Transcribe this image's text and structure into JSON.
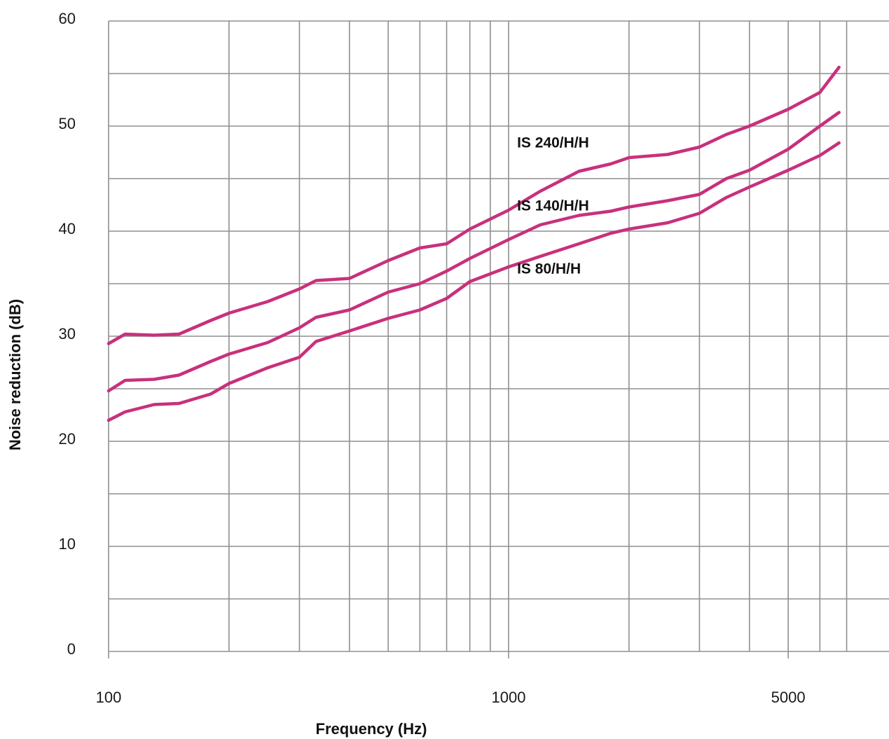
{
  "chart_data": {
    "type": "line",
    "xlabel": "Frequency (Hz)",
    "ylabel": "Noise reduction (dB)",
    "xscale": "log",
    "xlim": [
      100,
      7000
    ],
    "ylim": [
      0,
      60
    ],
    "xticks": [
      100,
      1000,
      5000
    ],
    "xtick_labels": [
      "100",
      "1000",
      "5000"
    ],
    "yticks": [
      0,
      10,
      20,
      30,
      40,
      50,
      60
    ],
    "ytick_labels": [
      "0",
      "10",
      "20",
      "30",
      "40",
      "50",
      "60"
    ],
    "grid": true,
    "line_color": "#c8307c",
    "series": [
      {
        "name": "IS 240/H/H",
        "label_at": [
          1050,
          48.5
        ],
        "x": [
          100,
          110,
          130,
          150,
          180,
          200,
          250,
          300,
          330,
          400,
          500,
          600,
          700,
          800,
          1000,
          1200,
          1500,
          1800,
          2000,
          2500,
          3000,
          3500,
          4000,
          5000,
          6000,
          6700
        ],
        "y": [
          29.3,
          30.2,
          30.1,
          30.2,
          31.5,
          32.2,
          33.3,
          34.5,
          35.3,
          35.5,
          37.2,
          38.4,
          38.8,
          40.2,
          42.0,
          43.8,
          45.7,
          46.4,
          47.0,
          47.3,
          48.0,
          49.2,
          50.0,
          51.6,
          53.2,
          55.6
        ]
      },
      {
        "name": "IS 140/H/H",
        "label_at": [
          1050,
          42.5
        ],
        "x": [
          100,
          110,
          130,
          150,
          180,
          200,
          250,
          300,
          330,
          400,
          500,
          600,
          700,
          800,
          1000,
          1200,
          1500,
          1800,
          2000,
          2500,
          3000,
          3500,
          4000,
          5000,
          6000,
          6700
        ],
        "y": [
          24.8,
          25.8,
          25.9,
          26.3,
          27.6,
          28.3,
          29.4,
          30.8,
          31.8,
          32.5,
          34.2,
          35.0,
          36.2,
          37.4,
          39.2,
          40.6,
          41.5,
          41.9,
          42.3,
          42.9,
          43.5,
          45.0,
          45.8,
          47.8,
          50.0,
          51.3
        ]
      },
      {
        "name": "IS 80/H/H",
        "label_at": [
          1050,
          36.5
        ],
        "x": [
          100,
          110,
          130,
          150,
          180,
          200,
          250,
          300,
          330,
          400,
          500,
          600,
          700,
          800,
          1000,
          1200,
          1500,
          1800,
          2000,
          2500,
          3000,
          3500,
          4000,
          5000,
          6000,
          6700
        ],
        "y": [
          22.0,
          22.8,
          23.5,
          23.6,
          24.5,
          25.5,
          27.0,
          28.0,
          29.5,
          30.5,
          31.7,
          32.5,
          33.6,
          35.2,
          36.6,
          37.6,
          38.8,
          39.8,
          40.2,
          40.8,
          41.7,
          43.2,
          44.2,
          45.8,
          47.2,
          48.4
        ]
      }
    ]
  }
}
